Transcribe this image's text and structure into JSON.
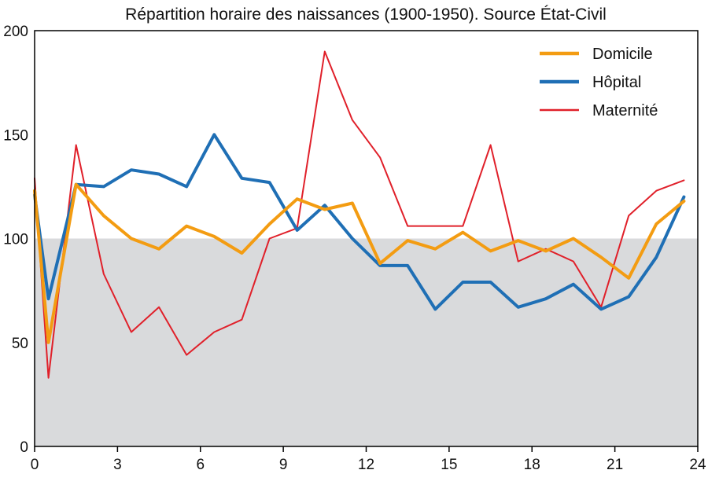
{
  "chart_data": {
    "type": "line",
    "title": "Répartition horaire des naissances (1900-1950). Source État-Civil",
    "xlabel": "",
    "ylabel": "",
    "xlim": [
      0,
      24
    ],
    "ylim": [
      0,
      200
    ],
    "xticks": [
      0,
      3,
      6,
      9,
      12,
      15,
      18,
      21,
      24
    ],
    "yticks": [
      0,
      50,
      100,
      150,
      200
    ],
    "grid": false,
    "legend_position": "top-right",
    "reference_band": {
      "from": 0,
      "to": 100,
      "color": "#d9dadc"
    },
    "x": [
      0,
      0.5,
      1.5,
      2.5,
      3.5,
      4.5,
      5.5,
      6.5,
      7.5,
      8.5,
      9.5,
      10.5,
      11.5,
      12.5,
      13.5,
      14.5,
      15.5,
      16.5,
      17.5,
      18.5,
      19.5,
      20.5,
      21.5,
      22.5,
      23.5
    ],
    "series": [
      {
        "name": "Domicile",
        "color": "#f39c12",
        "width": 4,
        "values": [
          123,
          50,
          126,
          111,
          100,
          95,
          106,
          101,
          93,
          107,
          119,
          114,
          117,
          88,
          99,
          95,
          103,
          94,
          99,
          94,
          100,
          91,
          81,
          107,
          118
        ]
      },
      {
        "name": "Hôpital",
        "color": "#1f6fb5",
        "width": 4,
        "values": [
          121,
          71,
          126,
          125,
          133,
          131,
          125,
          150,
          129,
          127,
          104,
          116,
          100,
          87,
          87,
          66,
          79,
          79,
          67,
          71,
          78,
          66,
          72,
          91,
          120
        ]
      },
      {
        "name": "Maternité",
        "color": "#e0202a",
        "width": 2,
        "values": [
          129,
          33,
          145,
          83,
          55,
          67,
          44,
          55,
          61,
          100,
          105,
          190,
          157,
          139,
          106,
          106,
          106,
          145,
          89,
          95,
          89,
          67,
          111,
          123,
          128
        ]
      }
    ]
  }
}
